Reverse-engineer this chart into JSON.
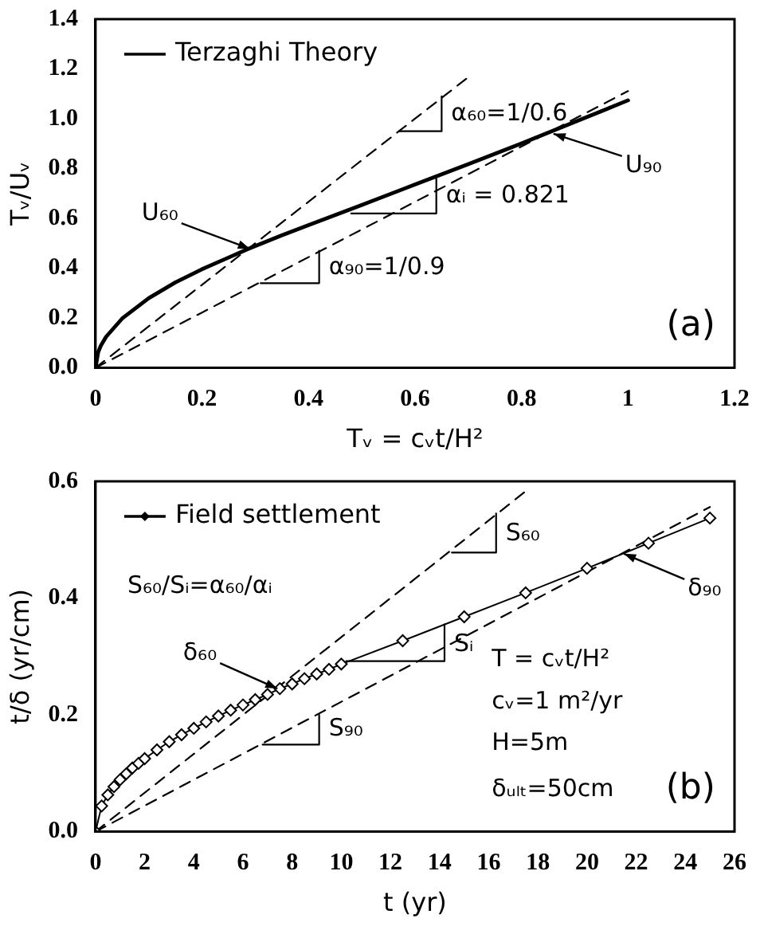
{
  "chart_data": [
    {
      "type": "line",
      "xlabel": "Tᵥ = cᵥt/H²",
      "ylabel": "Tᵥ/Uᵥ",
      "xlim": [
        0,
        1.2
      ],
      "xticks": [
        0,
        0.2,
        0.4,
        0.6,
        0.8,
        1,
        1.2
      ],
      "ylim": [
        0,
        1.4
      ],
      "yticks": [
        {
          "value": 0,
          "label": "0.0"
        },
        {
          "value": 0.2,
          "label": "0.2"
        },
        {
          "value": 0.4,
          "label": "0.4"
        },
        {
          "value": 0.6,
          "label": "0.6"
        },
        {
          "value": 0.8,
          "label": "0.8"
        },
        {
          "value": 1,
          "label": "1.0"
        },
        {
          "value": 1.2,
          "label": "1.2"
        },
        {
          "value": 1.4,
          "label": "1.4"
        }
      ],
      "grid": false,
      "legend": "top left",
      "series": [
        {
          "name": "Terzaghi Theory",
          "color": "#000000",
          "line_style": "solid",
          "marker": "none",
          "x": [
            0,
            0.005,
            0.01,
            0.02,
            0.05,
            0.1,
            0.15,
            0.2,
            0.25,
            0.287,
            0.35,
            0.4,
            0.5,
            0.6,
            0.7,
            0.8,
            0.9,
            1.0
          ],
          "values": [
            0,
            0.063,
            0.089,
            0.125,
            0.198,
            0.28,
            0.343,
            0.396,
            0.443,
            0.478,
            0.532,
            0.573,
            0.654,
            0.736,
            0.818,
            0.901,
            0.987,
            1.074
          ]
        },
        {
          "color": "#000000",
          "line_style": "dashed",
          "marker": "none",
          "x": [
            0,
            0.7
          ],
          "values": [
            0,
            1.167
          ]
        },
        {
          "color": "#000000",
          "line_style": "dashed",
          "marker": "none",
          "x": [
            0,
            1.0
          ],
          "values": [
            0,
            1.111
          ]
        },
        {
          "color": "#000000",
          "line_style": "solid",
          "marker": "none",
          "x": [
            0.57,
            0.65,
            0.65
          ],
          "values": [
            0.95,
            0.95,
            1.09
          ]
        },
        {
          "color": "#000000",
          "line_style": "solid",
          "marker": "none",
          "x": [
            0.48,
            0.64,
            0.64
          ],
          "values": [
            0.62,
            0.62,
            0.76
          ]
        },
        {
          "color": "#000000",
          "line_style": "solid",
          "marker": "none",
          "x": [
            0.31,
            0.42,
            0.42
          ],
          "values": [
            0.34,
            0.34,
            0.47
          ]
        }
      ],
      "annotations": [
        {
          "text": "α₆₀=1/0.6",
          "x": 0.65,
          "y": 1.02
        },
        {
          "text": "αᵢ = 0.821",
          "x": 0.64,
          "y": 0.69
        },
        {
          "text": "α₉₀=1/0.9",
          "x": 0.42,
          "y": 0.4
        },
        {
          "text": "U₆₀",
          "x": 0.29,
          "y": 0.478
        },
        {
          "text": "U₉₀",
          "x": 0.86,
          "y": 0.94
        },
        "(a)"
      ]
    },
    {
      "type": "line",
      "xlabel": "t (yr)",
      "ylabel": "t/δ (yr/cm)",
      "xlim": [
        0,
        26
      ],
      "xticks": [
        0,
        2,
        4,
        6,
        8,
        10,
        12,
        14,
        16,
        18,
        20,
        22,
        24,
        26
      ],
      "ylim": [
        0,
        0.6
      ],
      "yticks": [
        {
          "value": 0,
          "label": "0.0"
        },
        {
          "value": 0.2,
          "label": "0.2"
        },
        {
          "value": 0.4,
          "label": "0.4"
        },
        {
          "value": 0.6,
          "label": "0.6"
        }
      ],
      "grid": false,
      "legend": "top left",
      "series": [
        {
          "name": "Field settlement",
          "color": "#000000",
          "line_style": "solid",
          "marker": "diamond",
          "x": [
            0,
            0.25,
            0.5,
            0.75,
            1,
            1.25,
            1.5,
            1.75,
            2,
            2.5,
            3,
            3.5,
            4,
            4.5,
            5,
            5.5,
            6,
            6.5,
            7,
            7.5,
            8,
            8.5,
            9,
            9.5,
            10,
            12.5,
            15,
            17.5,
            20,
            22.5,
            25
          ],
          "values": [
            0,
            0.044,
            0.063,
            0.077,
            0.089,
            0.099,
            0.109,
            0.117,
            0.125,
            0.14,
            0.154,
            0.166,
            0.177,
            0.188,
            0.198,
            0.208,
            0.217,
            0.226,
            0.235,
            0.245,
            0.253,
            0.262,
            0.27,
            0.278,
            0.287,
            0.327,
            0.368,
            0.409,
            0.451,
            0.494,
            0.537
          ]
        },
        {
          "color": "#000000",
          "line_style": "dashed",
          "marker": "none",
          "x": [
            0,
            17.5
          ],
          "values": [
            0,
            0.583
          ]
        },
        {
          "color": "#000000",
          "line_style": "dashed",
          "marker": "none",
          "x": [
            0,
            25
          ],
          "values": [
            0,
            0.556
          ]
        },
        {
          "color": "#000000",
          "line_style": "solid",
          "marker": "none",
          "x": [
            14.5,
            16.3,
            16.3
          ],
          "values": [
            0.478,
            0.478,
            0.545
          ]
        },
        {
          "color": "#000000",
          "line_style": "solid",
          "marker": "none",
          "x": [
            10.2,
            14.2,
            14.2
          ],
          "values": [
            0.292,
            0.292,
            0.355
          ]
        },
        {
          "color": "#000000",
          "line_style": "solid",
          "marker": "none",
          "x": [
            6.8,
            9.1,
            9.1
          ],
          "values": [
            0.149,
            0.149,
            0.2
          ]
        }
      ],
      "annotations": [
        {
          "text": "S₆₀",
          "x": 16.3,
          "y": 0.51
        },
        {
          "text": "Sᵢ",
          "x": 14.2,
          "y": 0.32
        },
        {
          "text": "S₉₀",
          "x": 9.1,
          "y": 0.175
        },
        {
          "text": "δ₆₀",
          "x": 7.4,
          "y": 0.245
        },
        {
          "text": "δ₉₀",
          "x": 21.5,
          "y": 0.476
        },
        "S₆₀/Sᵢ=α₆₀/αᵢ",
        "T = cᵥt/H²",
        "cᵥ=1 m²/yr",
        "H=5m",
        "δᵤₗₜ=50cm",
        "(b)"
      ]
    }
  ]
}
